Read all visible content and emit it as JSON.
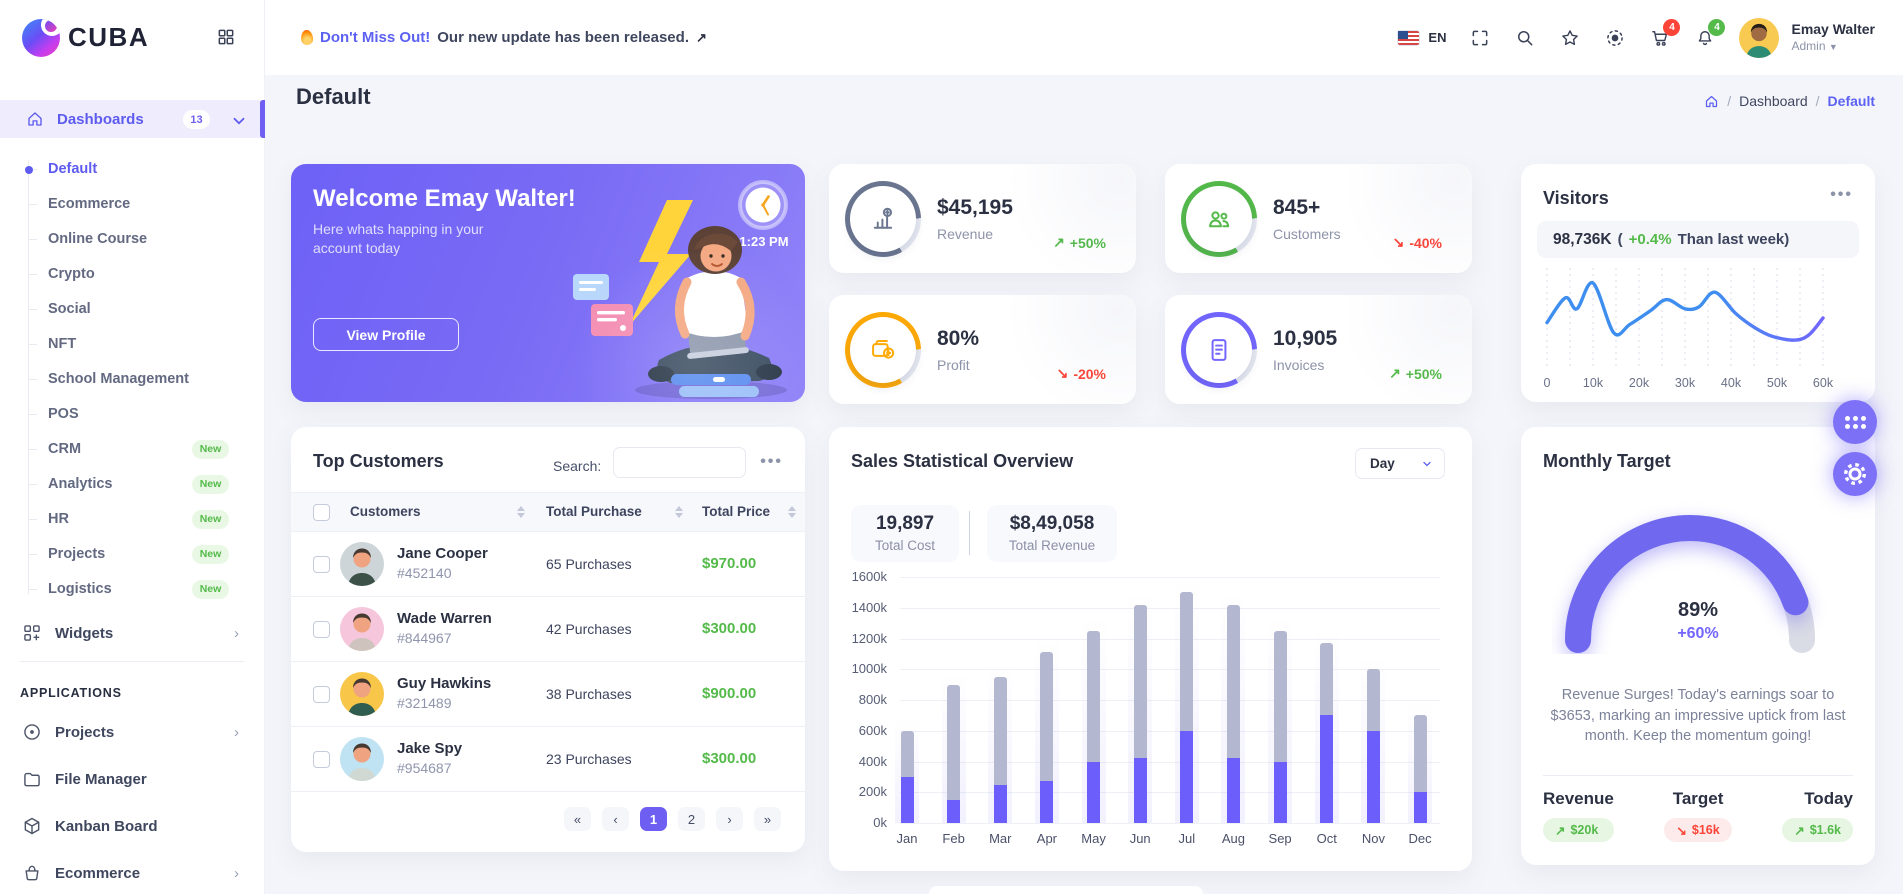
{
  "app": {
    "brand": "CUBA"
  },
  "header": {
    "announcement": {
      "highlight": "Don't Miss Out!",
      "text": "Our new update has been released.",
      "arrow": "↗"
    },
    "language": "EN",
    "icons": [
      "us-flag-icon",
      "fullscreen-icon",
      "search-icon",
      "star-icon",
      "brightness-icon",
      "cart-icon",
      "bell-icon"
    ],
    "cart_badge": "4",
    "bell_badge": "4",
    "user": {
      "name": "Emay Walter",
      "role": "Admin"
    }
  },
  "page": {
    "title": "Default",
    "breadcrumb": {
      "section": "Dashboard",
      "current": "Default"
    }
  },
  "sidebar": {
    "dashboards": {
      "label": "Dashboards",
      "badge": "13",
      "items": [
        {
          "label": "Default",
          "active": true
        },
        {
          "label": "Ecommerce"
        },
        {
          "label": "Online Course"
        },
        {
          "label": "Crypto"
        },
        {
          "label": "Social"
        },
        {
          "label": "NFT"
        },
        {
          "label": "School Management"
        },
        {
          "label": "POS"
        },
        {
          "label": "CRM",
          "badge": "New"
        },
        {
          "label": "Analytics",
          "badge": "New"
        },
        {
          "label": "HR",
          "badge": "New"
        },
        {
          "label": "Projects",
          "badge": "New"
        },
        {
          "label": "Logistics",
          "badge": "New"
        }
      ]
    },
    "widgets": {
      "label": "Widgets"
    },
    "section_title": "APPLICATIONS",
    "apps": [
      {
        "label": "Projects",
        "icon": "project-icon",
        "chevron": true
      },
      {
        "label": "File Manager",
        "icon": "folder-icon",
        "chevron": false
      },
      {
        "label": "Kanban Board",
        "icon": "cube-icon",
        "chevron": false
      },
      {
        "label": "Ecommerce",
        "icon": "basket-icon",
        "chevron": true
      }
    ]
  },
  "welcome": {
    "title": "Welcome Emay Walter!",
    "subtitle": "Here whats happing in your account today",
    "button": "View Profile",
    "clock_time": "1:23 PM"
  },
  "stat_cards": [
    {
      "value": "$45,195",
      "label": "Revenue",
      "trend": "+50%",
      "trend_dir": "up",
      "trend_color": "#54ba4a",
      "ring_color": "#6b7690",
      "icon": "revenue-chart-icon"
    },
    {
      "value": "845+",
      "label": "Customers",
      "trend": "-40%",
      "trend_dir": "down",
      "trend_color": "#fc4438",
      "ring_color": "#54ba4a",
      "icon": "customers-icon"
    },
    {
      "value": "80%",
      "label": "Profit",
      "trend": "-20%",
      "trend_dir": "down",
      "trend_color": "#fc4438",
      "ring_color": "#ffaa05",
      "icon": "profit-wallet-icon"
    },
    {
      "value": "10,905",
      "label": "Invoices",
      "trend": "+50%",
      "trend_dir": "up",
      "trend_color": "#54ba4a",
      "ring_color": "#7366ff",
      "icon": "invoices-icon"
    }
  ],
  "visitors": {
    "title": "Visitors",
    "stat": "98,736K",
    "note_open": "(",
    "delta": "+0.4%",
    "note_rest": "Than last week)"
  },
  "top_customers": {
    "title": "Top Customers",
    "search_label": "Search:",
    "columns": [
      "Customers",
      "Total Purchase",
      "Total Price"
    ],
    "rows": [
      {
        "name": "Jane Cooper",
        "id": "#452140",
        "purchases": "65 Purchases",
        "price": "$970.00",
        "avatar_bg": "#cdd5d9",
        "shirt": "#3c5148"
      },
      {
        "name": "Wade Warren",
        "id": "#844967",
        "purchases": "42 Purchases",
        "price": "$300.00",
        "avatar_bg": "#f6c6dc",
        "shirt": "#cfc4bd"
      },
      {
        "name": "Guy Hawkins",
        "id": "#321489",
        "purchases": "38 Purchases",
        "price": "$900.00",
        "avatar_bg": "#f8c649",
        "shirt": "#2f5d50"
      },
      {
        "name": "Jake Spy",
        "id": "#954687",
        "purchases": "23 Purchases",
        "price": "$300.00",
        "avatar_bg": "#bfe3f2",
        "shirt": "#cfd8d2"
      }
    ],
    "pagination": {
      "buttons": [
        "«",
        "‹",
        "1",
        "2",
        "›",
        "»"
      ],
      "active": "1"
    }
  },
  "sales": {
    "title": "Sales Statistical Overview",
    "total_cost_value": "19,897",
    "total_cost_label": "Total Cost",
    "total_revenue_value": "$8,49,058",
    "total_revenue_label": "Total Revenue",
    "period": "Day"
  },
  "monthly_target": {
    "title": "Monthly Target",
    "percent": "89%",
    "delta": "+60%",
    "description": "Revenue Surges! Today's earnings soar to $3653, marking an impressive uptick from last month. Keep the momentum going!",
    "footer": [
      {
        "label": "Revenue",
        "value": "$20k",
        "dir": "up"
      },
      {
        "label": "Target",
        "value": "$16k",
        "dir": "down"
      },
      {
        "label": "Today",
        "value": "$1.6k",
        "dir": "up"
      }
    ]
  },
  "chart_data": [
    {
      "type": "bar",
      "title": "Sales Statistical Overview",
      "categories": [
        "Jan",
        "Feb",
        "Mar",
        "Apr",
        "May",
        "Jun",
        "Jul",
        "Aug",
        "Sep",
        "Oct",
        "Nov",
        "Dec"
      ],
      "series": [
        {
          "name": "Total Revenue",
          "color": "#b3b7cf",
          "values": [
            600,
            900,
            950,
            1110,
            1250,
            1420,
            1500,
            1420,
            1250,
            1170,
            1000,
            700
          ]
        },
        {
          "name": "Total Cost",
          "color": "#6c5efb",
          "values": [
            300,
            150,
            250,
            270,
            400,
            420,
            600,
            420,
            400,
            700,
            600,
            200
          ]
        }
      ],
      "mode": "overlay (cost drawn over bottom of revenue bar)",
      "ylabel_unit": "k",
      "y_axis": {
        "min": 0,
        "max": 1600,
        "step": 200
      },
      "grid": true,
      "legend": false
    },
    {
      "type": "line",
      "title": "Visitors",
      "x_ticks": [
        "0",
        "10k",
        "20k",
        "30k",
        "40k",
        "50k",
        "60k"
      ],
      "gridlines": 13,
      "y_axis": "unlabeled — points are normalized shape, y is percent from top (0 = high)",
      "points": [
        [
          0,
          55
        ],
        [
          0.8,
          28
        ],
        [
          1.3,
          40
        ],
        [
          2,
          12
        ],
        [
          2.9,
          66
        ],
        [
          3.6,
          57
        ],
        [
          4.5,
          42
        ],
        [
          5.2,
          30
        ],
        [
          6,
          40
        ],
        [
          6.6,
          38
        ],
        [
          7.3,
          22
        ],
        [
          8.2,
          45
        ],
        [
          9,
          60
        ],
        [
          9.8,
          70
        ],
        [
          10.8,
          74
        ],
        [
          11.4,
          68
        ],
        [
          12,
          50
        ]
      ],
      "line_gradient": [
        "#3e8ef0",
        "#7366ff"
      ]
    },
    {
      "type": "gauge",
      "title": "Monthly Target",
      "value": 89,
      "max": 100,
      "delta": "+60%",
      "colors": {
        "fill": "#7168f0",
        "track": "#dadce5"
      }
    }
  ]
}
